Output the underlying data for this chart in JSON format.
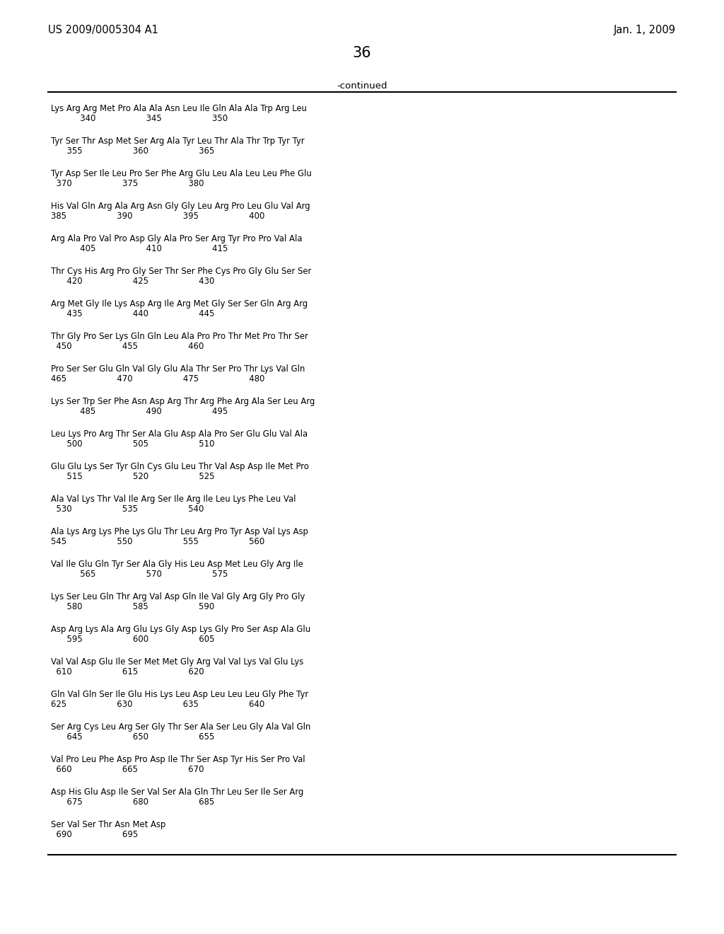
{
  "header_left": "US 2009/0005304 A1",
  "header_right": "Jan. 1, 2009",
  "page_number": "36",
  "continued_label": "-continued",
  "background_color": "#ffffff",
  "text_color": "#000000",
  "sequence_lines": [
    [
      "Lys Arg Arg Met Pro Ala Ala Asn Leu Ile Gln Ala Ala Trp Arg Leu",
      "           340                   345                   350"
    ],
    [
      "Tyr Ser Thr Asp Met Ser Arg Ala Tyr Leu Thr Ala Thr Trp Tyr Tyr",
      "      355                   360                   365"
    ],
    [
      "Tyr Asp Ser Ile Leu Pro Ser Phe Arg Glu Leu Ala Leu Leu Phe Glu",
      "  370                   375                   380"
    ],
    [
      "His Val Gln Arg Ala Arg Asn Gly Gly Leu Arg Pro Leu Glu Val Arg",
      "385                   390                   395                   400"
    ],
    [
      "Arg Ala Pro Val Pro Asp Gly Ala Pro Ser Arg Tyr Pro Pro Val Ala",
      "           405                   410                   415"
    ],
    [
      "Thr Cys His Arg Pro Gly Ser Thr Ser Phe Cys Pro Gly Glu Ser Ser",
      "      420                   425                   430"
    ],
    [
      "Arg Met Gly Ile Lys Asp Arg Ile Arg Met Gly Ser Ser Gln Arg Arg",
      "      435                   440                   445"
    ],
    [
      "Thr Gly Pro Ser Lys Gln Gln Leu Ala Pro Pro Thr Met Pro Thr Ser",
      "  450                   455                   460"
    ],
    [
      "Pro Ser Ser Glu Gln Val Gly Glu Ala Thr Ser Pro Thr Lys Val Gln",
      "465                   470                   475                   480"
    ],
    [
      "Lys Ser Trp Ser Phe Asn Asp Arg Thr Arg Phe Arg Ala Ser Leu Arg",
      "           485                   490                   495"
    ],
    [
      "Leu Lys Pro Arg Thr Ser Ala Glu Asp Ala Pro Ser Glu Glu Val Ala",
      "      500                   505                   510"
    ],
    [
      "Glu Glu Lys Ser Tyr Gln Cys Glu Leu Thr Val Asp Asp Ile Met Pro",
      "      515                   520                   525"
    ],
    [
      "Ala Val Lys Thr Val Ile Arg Ser Ile Arg Ile Leu Lys Phe Leu Val",
      "  530                   535                   540"
    ],
    [
      "Ala Lys Arg Lys Phe Lys Glu Thr Leu Arg Pro Tyr Asp Val Lys Asp",
      "545                   550                   555                   560"
    ],
    [
      "Val Ile Glu Gln Tyr Ser Ala Gly His Leu Asp Met Leu Gly Arg Ile",
      "           565                   570                   575"
    ],
    [
      "Lys Ser Leu Gln Thr Arg Val Asp Gln Ile Val Gly Arg Gly Pro Gly",
      "      580                   585                   590"
    ],
    [
      "Asp Arg Lys Ala Arg Glu Lys Gly Asp Lys Gly Pro Ser Asp Ala Glu",
      "      595                   600                   605"
    ],
    [
      "Val Val Asp Glu Ile Ser Met Met Gly Arg Val Val Lys Val Glu Lys",
      "  610                   615                   620"
    ],
    [
      "Gln Val Gln Ser Ile Glu His Lys Leu Asp Leu Leu Leu Gly Phe Tyr",
      "625                   630                   635                   640"
    ],
    [
      "Ser Arg Cys Leu Arg Ser Gly Thr Ser Ala Ser Leu Gly Ala Val Gln",
      "      645                   650                   655"
    ],
    [
      "Val Pro Leu Phe Asp Pro Asp Ile Thr Ser Asp Tyr His Ser Pro Val",
      "  660                   665                   670"
    ],
    [
      "Asp His Glu Asp Ile Ser Val Ser Ala Gln Thr Leu Ser Ile Ser Arg",
      "      675                   680                   685"
    ],
    [
      "Ser Val Ser Thr Asn Met Asp",
      "  690                   695"
    ]
  ]
}
